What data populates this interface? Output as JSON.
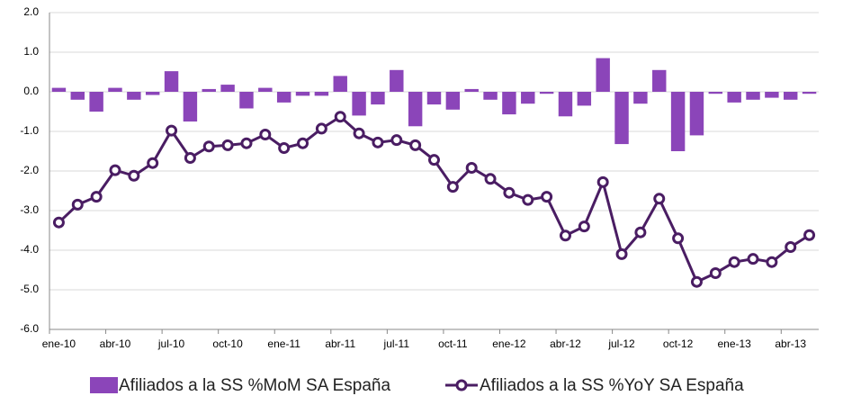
{
  "chart_data": {
    "type": "bar-line",
    "categories": [
      "ene-10",
      null,
      null,
      "abr-10",
      null,
      null,
      "jul-10",
      null,
      null,
      "oct-10",
      null,
      null,
      "ene-11",
      null,
      null,
      "abr-11",
      null,
      null,
      "jul-11",
      null,
      null,
      "oct-11",
      null,
      null,
      "ene-12",
      null,
      null,
      "abr-12",
      null,
      null,
      "jul-12",
      null,
      null,
      "oct-12",
      null,
      null,
      "ene-13",
      null,
      null,
      "abr-13",
      null
    ],
    "series": [
      {
        "name": "Afiliados a la SS %MoM SA España",
        "kind": "bar",
        "color": "#8b45b9",
        "values": [
          0.1,
          -0.2,
          -0.5,
          0.1,
          -0.2,
          -0.08,
          0.52,
          -0.75,
          0.07,
          0.18,
          -0.42,
          0.1,
          -0.27,
          -0.1,
          -0.1,
          0.4,
          -0.6,
          -0.32,
          0.55,
          -0.87,
          -0.32,
          -0.45,
          0.07,
          -0.2,
          -0.57,
          -0.3,
          -0.05,
          -0.62,
          -0.35,
          0.85,
          -1.32,
          -0.3,
          0.55,
          -1.5,
          -1.1,
          -0.05,
          -0.27,
          -0.2,
          -0.15,
          -0.2,
          -0.05
        ]
      },
      {
        "name": "Afiliados a la SS %YoY SA España",
        "kind": "line",
        "color": "#4a1d63",
        "values": [
          -3.3,
          -2.85,
          -2.65,
          -1.98,
          -2.12,
          -1.8,
          -0.98,
          -1.67,
          -1.38,
          -1.35,
          -1.3,
          -1.08,
          -1.42,
          -1.3,
          -0.93,
          -0.63,
          -1.05,
          -1.28,
          -1.22,
          -1.35,
          -1.72,
          -2.4,
          -1.92,
          -2.2,
          -2.55,
          -2.73,
          -2.65,
          -3.63,
          -3.4,
          -2.28,
          -4.1,
          -3.55,
          -2.7,
          -3.7,
          -4.8,
          -4.58,
          -4.3,
          -4.22,
          -4.3,
          -3.92,
          -3.62
        ]
      }
    ],
    "ylim": [
      -6,
      2
    ],
    "yticks": [
      {
        "value": -6,
        "label": "-6.0"
      },
      {
        "value": -5,
        "label": "-5.0"
      },
      {
        "value": -4,
        "label": "-4.0"
      },
      {
        "value": -3,
        "label": "-3.0"
      },
      {
        "value": -2,
        "label": "-2.0"
      },
      {
        "value": -1,
        "label": "-1.0"
      },
      {
        "value": 0,
        "label": "0.0"
      },
      {
        "value": 1,
        "label": "1.0"
      },
      {
        "value": 2,
        "label": "2.0"
      }
    ],
    "grid": true,
    "legend": "bottom"
  }
}
